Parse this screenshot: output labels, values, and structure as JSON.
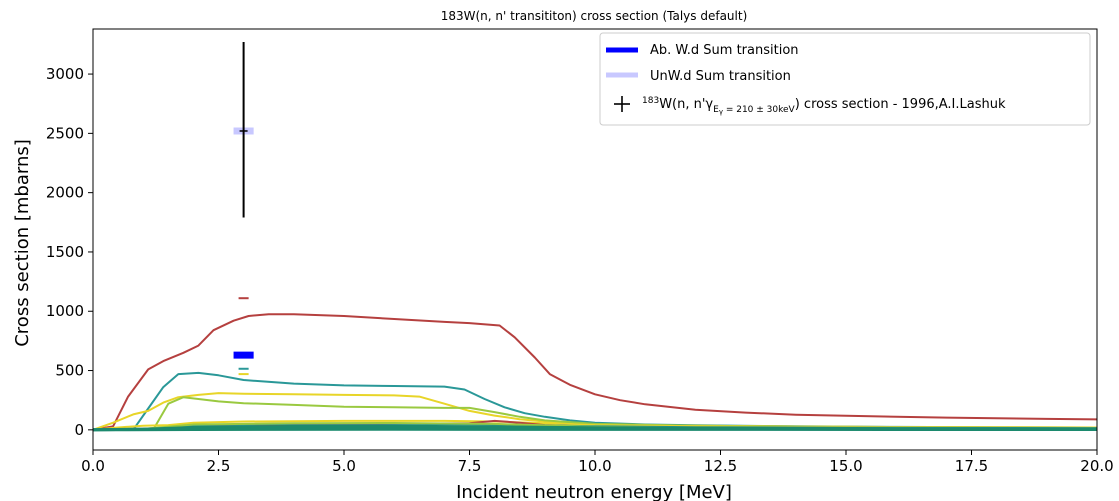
{
  "chart_data": {
    "type": "line",
    "title": "183W(n, n' transititon) cross section (Talys default)",
    "xlabel": "Incident neutron energy [MeV]",
    "ylabel": "Cross section [mbarns]",
    "xlim": [
      0,
      20
    ],
    "ylim": [
      -170,
      3380
    ],
    "xticks": [
      0,
      2.5,
      5,
      7.5,
      10,
      12.5,
      15,
      17.5,
      20
    ],
    "xtick_labels": [
      "0.0",
      "2.5",
      "5.0",
      "7.5",
      "10.0",
      "12.5",
      "15.0",
      "17.5",
      "20.0"
    ],
    "yticks": [
      0,
      500,
      1000,
      1500,
      2000,
      2500,
      3000
    ],
    "ytick_labels": [
      "0",
      "500",
      "1000",
      "1500",
      "2000",
      "2500",
      "3000"
    ],
    "grid": false,
    "legend_position": "top-right",
    "legend": [
      {
        "label": "Ab. W.d Sum transition",
        "color": "#0000ff",
        "marker": "thick-line"
      },
      {
        "label": "UnW.d Sum transition",
        "color": "#c8c8ff",
        "marker": "thick-line"
      },
      {
        "label_main_pre": "183",
        "label_main_mid": "W(n, n'γ",
        "label_sub": "E",
        "label_subsub": "γ",
        "label_sub_rest": " = 210 ± 30keV",
        "label_main_post": ") cross section - 1996,A.I.Lashuk",
        "color": "#000000",
        "marker": "plus"
      }
    ],
    "series": [
      {
        "color": "#b5403f",
        "width": 2,
        "x": [
          0,
          0.4,
          0.7,
          1.1,
          1.4,
          1.8,
          2.1,
          2.4,
          2.8,
          3.1,
          3.5,
          4.0,
          5.0,
          6.0,
          7.0,
          7.5,
          8.1,
          8.4,
          8.8,
          9.1,
          9.5,
          10.0,
          10.5,
          11.0,
          12.0,
          13.0,
          14.0,
          15.0,
          16.0,
          17.0,
          18.0,
          19.0,
          20.0
        ],
        "y": [
          0,
          30,
          280,
          510,
          580,
          650,
          710,
          840,
          920,
          960,
          975,
          975,
          960,
          935,
          910,
          900,
          880,
          780,
          610,
          470,
          380,
          300,
          250,
          215,
          170,
          145,
          128,
          118,
          110,
          103,
          97,
          92,
          88
        ]
      },
      {
        "color": "#2a9898",
        "width": 2,
        "x": [
          0,
          0.8,
          1.1,
          1.4,
          1.7,
          2.1,
          2.5,
          3.0,
          4.0,
          5.0,
          6.0,
          7.0,
          7.4,
          7.8,
          8.2,
          8.6,
          9.0,
          9.5,
          10.0,
          11.0,
          12.0,
          14.0,
          16.0,
          18.0,
          20.0
        ],
        "y": [
          0,
          0,
          180,
          360,
          470,
          480,
          460,
          420,
          390,
          375,
          370,
          365,
          340,
          260,
          190,
          140,
          110,
          80,
          60,
          45,
          38,
          30,
          25,
          22,
          20
        ]
      },
      {
        "color": "#e8d528",
        "width": 2,
        "x": [
          0,
          0.4,
          0.8,
          1.1,
          1.4,
          1.7,
          2.1,
          2.5,
          3.0,
          4.0,
          5.0,
          6.0,
          6.5,
          7.0,
          7.5,
          8.0,
          8.5,
          9.0,
          10.0,
          12.0,
          14.0,
          16.0,
          18.0,
          20.0
        ],
        "y": [
          0,
          60,
          130,
          160,
          230,
          275,
          295,
          310,
          305,
          300,
          295,
          290,
          280,
          220,
          160,
          120,
          90,
          70,
          45,
          35,
          28,
          24,
          20,
          18
        ]
      },
      {
        "color": "#9ac940",
        "width": 2,
        "x": [
          0,
          1.2,
          1.5,
          1.8,
          2.1,
          2.5,
          3.0,
          4.0,
          5.0,
          6.0,
          7.0,
          7.5,
          8.0,
          8.5,
          9.0,
          10.0,
          12.0,
          14.0,
          16.0,
          18.0,
          20.0
        ],
        "y": [
          0,
          0,
          220,
          275,
          260,
          240,
          225,
          210,
          195,
          190,
          185,
          185,
          150,
          110,
          80,
          50,
          35,
          28,
          23,
          20,
          18
        ]
      },
      {
        "color": "#e8d528",
        "width": 2,
        "x": [
          0,
          0.5,
          1.0,
          1.5,
          2.0,
          3.0,
          5.0,
          7.0,
          8.0,
          9.0,
          10.0,
          12.0,
          15.0,
          20.0
        ],
        "y": [
          0,
          20,
          35,
          40,
          60,
          70,
          75,
          75,
          70,
          55,
          40,
          30,
          25,
          20
        ]
      },
      {
        "color": "#b5403f",
        "width": 2,
        "x": [
          0,
          1.0,
          2.0,
          4.0,
          6.0,
          7.5,
          8.0,
          8.5,
          9.0,
          10.0,
          12.0,
          15.0,
          20.0
        ],
        "y": [
          0,
          10,
          30,
          45,
          50,
          55,
          75,
          60,
          40,
          25,
          18,
          14,
          10
        ]
      },
      {
        "color": "#2a9898",
        "width": 2,
        "x": [
          0,
          1.0,
          2.0,
          4.0,
          6.0,
          8.0,
          10.0,
          12.0,
          15.0,
          20.0
        ],
        "y": [
          0,
          5,
          40,
          50,
          52,
          45,
          30,
          22,
          18,
          14
        ]
      },
      {
        "color": "#9ac940",
        "width": 2,
        "x": [
          0,
          1.0,
          2.0,
          4.0,
          6.0,
          8.0,
          10.0,
          13.0,
          20.0
        ],
        "y": [
          0,
          8,
          45,
          55,
          58,
          50,
          25,
          15,
          8
        ]
      },
      {
        "color": "#1c8a6e",
        "width": 3,
        "x": [
          0,
          1.0,
          2.0,
          4.0,
          6.0,
          8.0,
          10.0,
          13.0,
          16.0,
          20.0
        ],
        "y": [
          0,
          5,
          20,
          28,
          30,
          25,
          18,
          14,
          10,
          8
        ]
      },
      {
        "color": "#1c8a6e",
        "width": 3,
        "x": [
          0,
          2.0,
          5.0,
          8.0,
          12.0,
          20.0
        ],
        "y": [
          0,
          10,
          15,
          12,
          8,
          5
        ]
      },
      {
        "color": "#1c8a6e",
        "width": 3,
        "x": [
          0,
          2.0,
          6.0,
          10.0,
          20.0
        ],
        "y": [
          0,
          3,
          5,
          4,
          3
        ]
      }
    ],
    "markers": [
      {
        "name": "Ab. W.d Sum transition",
        "x": 3.0,
        "y": 630,
        "color": "#0000ff",
        "half_width": 0.2,
        "thickness": 7
      },
      {
        "name": "UnW.d Sum transition",
        "x": 3.0,
        "y": 2520,
        "color": "#c8c8ff",
        "half_width": 0.2,
        "thickness": 7
      },
      {
        "x": 3.0,
        "y": 1110,
        "color": "#b5403f",
        "half_width": 0.1,
        "thickness": 2
      },
      {
        "x": 3.0,
        "y": 515,
        "color": "#2a9898",
        "half_width": 0.1,
        "thickness": 2
      },
      {
        "x": 3.0,
        "y": 470,
        "color": "#e8d528",
        "half_width": 0.1,
        "thickness": 2
      }
    ],
    "errorbar": {
      "x": 3.0,
      "y": 2520,
      "yerr_low": 2.0,
      "ylow": 1790,
      "yhigh": 3270,
      "color": "#000000"
    }
  }
}
